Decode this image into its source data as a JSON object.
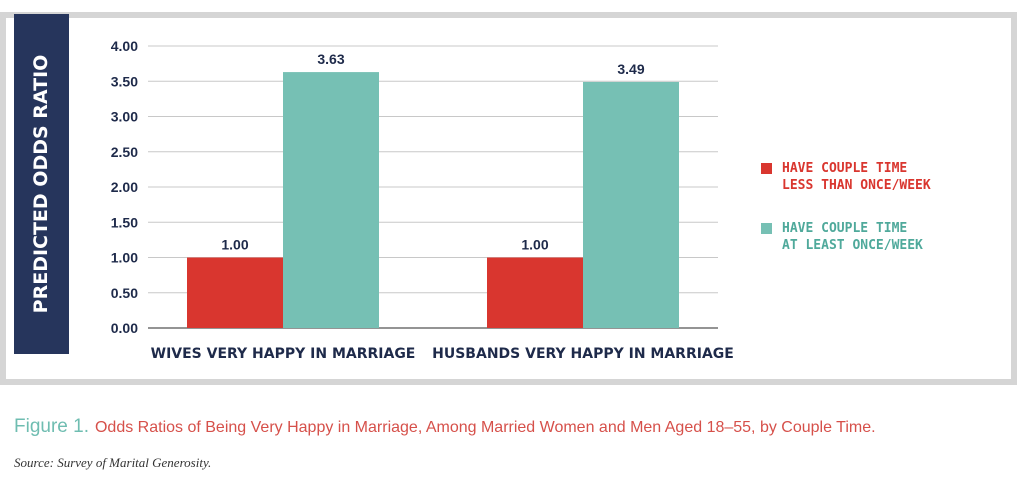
{
  "chart_data": {
    "type": "bar",
    "ylabel": "PREDICTED ODDS RATIO",
    "xlabel": "",
    "ylim": [
      0,
      4
    ],
    "yticks": [
      "0.00",
      "0.50",
      "1.00",
      "1.50",
      "2.00",
      "2.50",
      "3.00",
      "3.50",
      "4.00"
    ],
    "categories": [
      "WIVES VERY HAPPY IN MARRIAGE",
      "HUSBANDS VERY HAPPY IN MARRIAGE"
    ],
    "series": [
      {
        "name": "HAVE COUPLE TIME LESS THAN ONCE/WEEK",
        "values": [
          1.0,
          1.0
        ],
        "labels": [
          "1.00",
          "1.00"
        ],
        "color": "#d9362f"
      },
      {
        "name": "HAVE COUPLE TIME AT LEAST ONCE/WEEK",
        "values": [
          3.63,
          3.49
        ],
        "labels": [
          "3.63",
          "3.49"
        ],
        "color": "#76c0b4"
      }
    ],
    "grid": true,
    "legend_position": "right"
  },
  "legend": [
    {
      "line1": "HAVE COUPLE TIME",
      "line2": "LESS THAN ONCE/WEEK",
      "color": "#d9362f"
    },
    {
      "line1": "HAVE COUPLE TIME",
      "line2": "AT LEAST ONCE/WEEK",
      "color": "#4fa99b"
    }
  ],
  "caption": {
    "figure": "Figure 1.",
    "text": "Odds Ratios of Being Very Happy in Marriage, Among Married Women and Men Aged 18–55, by Couple Time."
  },
  "source": "Source: Survey of Marital Generosity."
}
